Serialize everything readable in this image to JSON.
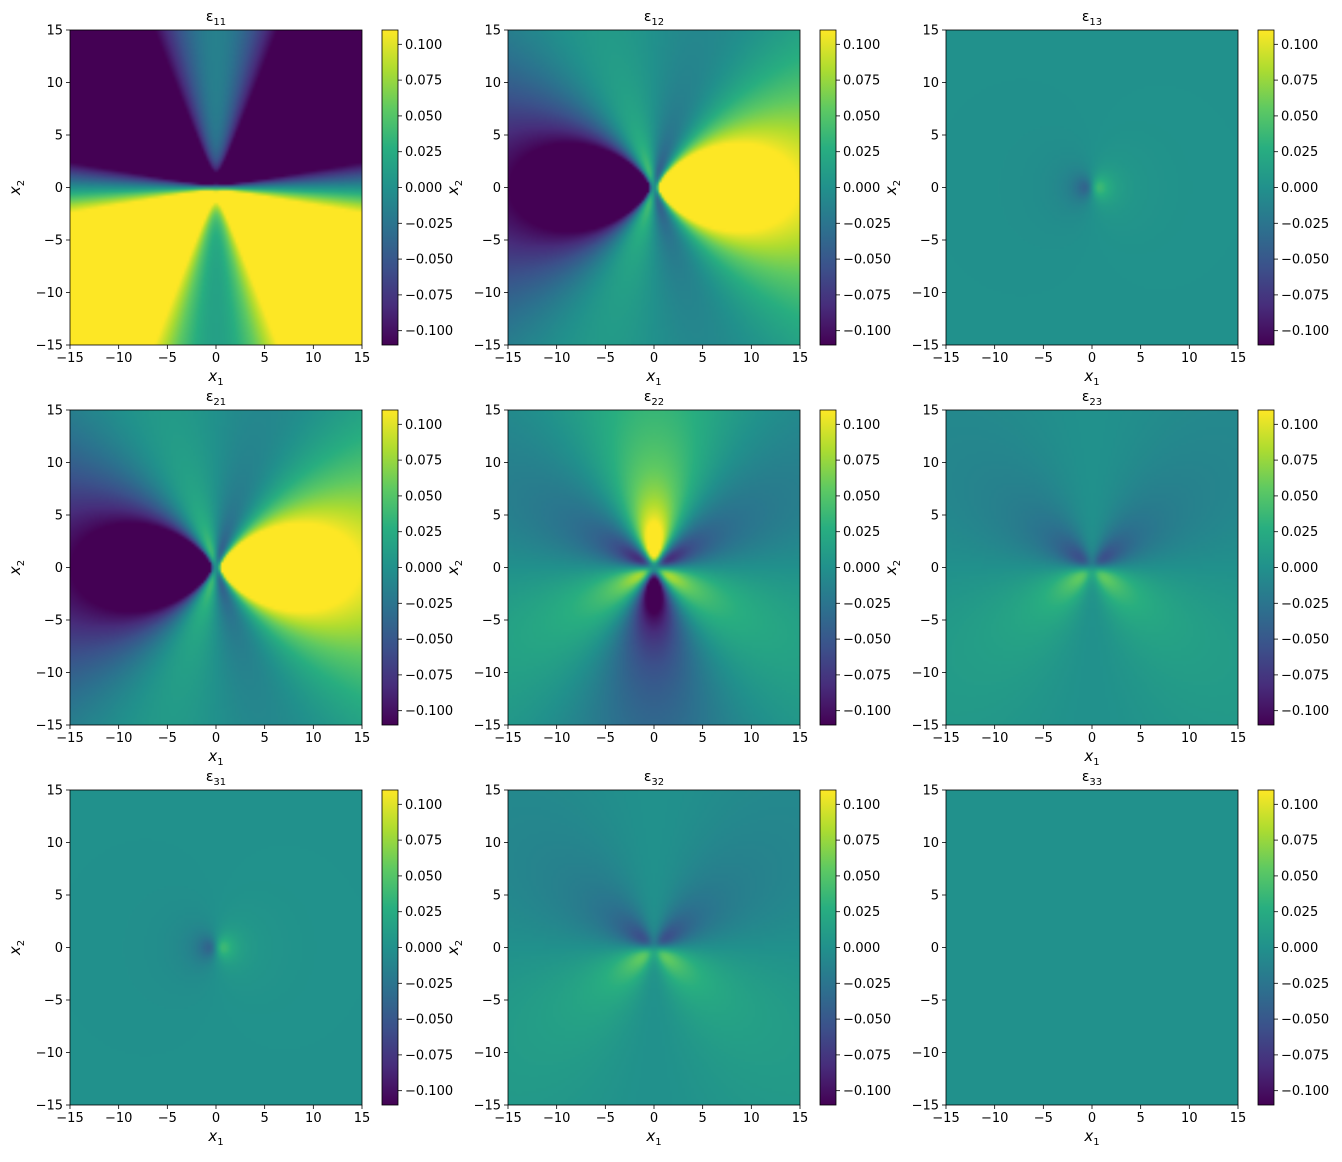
{
  "chart_data": [
    {
      "type": "heatmap",
      "title": "ε",
      "title_sub": "11",
      "xlabel": "x",
      "xlabel_sub": "1",
      "ylabel": "x",
      "ylabel_sub": "2",
      "xlim": [
        -15,
        15
      ],
      "ylim": [
        -15,
        15
      ],
      "xticks": [
        -15,
        -10,
        -5,
        0,
        5,
        10,
        15
      ],
      "yticks": [
        -15,
        -10,
        -5,
        0,
        5,
        10,
        15
      ],
      "colorbar": {
        "ticks": [
          0.1,
          0.075,
          0.05,
          0.025,
          0.0,
          -0.025,
          -0.05,
          -0.075,
          -0.1
        ],
        "tick_labels": [
          "0.100",
          "0.075",
          "0.050",
          "0.025",
          "0.000",
          "−0.025",
          "−0.050",
          "−0.075",
          "−0.100"
        ],
        "range": [
          -0.11,
          0.11
        ],
        "colormap": "viridis"
      },
      "pattern": "e11"
    },
    {
      "type": "heatmap",
      "title": "ε",
      "title_sub": "12",
      "xlabel": "x",
      "xlabel_sub": "1",
      "ylabel": "x",
      "ylabel_sub": "2",
      "xlim": [
        -15,
        15
      ],
      "ylim": [
        -15,
        15
      ],
      "xticks": [
        -15,
        -10,
        -5,
        0,
        5,
        10,
        15
      ],
      "yticks": [
        -15,
        -10,
        -5,
        0,
        5,
        10,
        15
      ],
      "colorbar": {
        "ticks": [
          0.1,
          0.075,
          0.05,
          0.025,
          0.0,
          -0.025,
          -0.05,
          -0.075,
          -0.1
        ],
        "tick_labels": [
          "0.100",
          "0.075",
          "0.050",
          "0.025",
          "0.000",
          "−0.025",
          "−0.050",
          "−0.075",
          "−0.100"
        ],
        "range": [
          -0.11,
          0.11
        ],
        "colormap": "viridis"
      },
      "pattern": "e12"
    },
    {
      "type": "heatmap",
      "title": "ε",
      "title_sub": "13",
      "xlabel": "x",
      "xlabel_sub": "1",
      "ylabel": "x",
      "ylabel_sub": "2",
      "xlim": [
        -15,
        15
      ],
      "ylim": [
        -15,
        15
      ],
      "xticks": [
        -15,
        -10,
        -5,
        0,
        5,
        10,
        15
      ],
      "yticks": [
        -15,
        -10,
        -5,
        0,
        5,
        10,
        15
      ],
      "colorbar": {
        "ticks": [
          0.1,
          0.075,
          0.05,
          0.025,
          0.0,
          -0.025,
          -0.05,
          -0.075,
          -0.1
        ],
        "tick_labels": [
          "0.100",
          "0.075",
          "0.050",
          "0.025",
          "0.000",
          "−0.025",
          "−0.050",
          "−0.075",
          "−0.100"
        ],
        "range": [
          -0.11,
          0.11
        ],
        "colormap": "viridis"
      },
      "pattern": "e13"
    },
    {
      "type": "heatmap",
      "title": "ε",
      "title_sub": "21",
      "xlabel": "x",
      "xlabel_sub": "1",
      "ylabel": "x",
      "ylabel_sub": "2",
      "xlim": [
        -15,
        15
      ],
      "ylim": [
        -15,
        15
      ],
      "xticks": [
        -15,
        -10,
        -5,
        0,
        5,
        10,
        15
      ],
      "yticks": [
        -15,
        -10,
        -5,
        0,
        5,
        10,
        15
      ],
      "colorbar": {
        "ticks": [
          0.1,
          0.075,
          0.05,
          0.025,
          0.0,
          -0.025,
          -0.05,
          -0.075,
          -0.1
        ],
        "tick_labels": [
          "0.100",
          "0.075",
          "0.050",
          "0.025",
          "0.000",
          "−0.025",
          "−0.050",
          "−0.075",
          "−0.100"
        ],
        "range": [
          -0.11,
          0.11
        ],
        "colormap": "viridis"
      },
      "pattern": "e12"
    },
    {
      "type": "heatmap",
      "title": "ε",
      "title_sub": "22",
      "xlabel": "",
      "xlabel_sub": "",
      "ylabel": "x",
      "ylabel_sub": "2",
      "xlim": [
        -15,
        15
      ],
      "ylim": [
        -15,
        15
      ],
      "xticks": [
        -15,
        -10,
        -5,
        0,
        5,
        10,
        15
      ],
      "yticks": [
        -15,
        -10,
        -5,
        0,
        5,
        10,
        15
      ],
      "colorbar": {
        "ticks": [
          0.1,
          0.075,
          0.05,
          0.025,
          0.0,
          -0.025,
          -0.05,
          -0.075,
          -0.1
        ],
        "tick_labels": [
          "0.100",
          "0.075",
          "0.050",
          "0.025",
          "0.000",
          "−0.025",
          "−0.050",
          "−0.075",
          "−0.100"
        ],
        "range": [
          -0.11,
          0.11
        ],
        "colormap": "viridis"
      },
      "pattern": "e22"
    },
    {
      "type": "heatmap",
      "title": "ε",
      "title_sub": "23",
      "xlabel": "x",
      "xlabel_sub": "1",
      "ylabel": "x",
      "ylabel_sub": "2",
      "xlim": [
        -15,
        15
      ],
      "ylim": [
        -15,
        15
      ],
      "xticks": [
        -15,
        -10,
        -5,
        0,
        5,
        10,
        15
      ],
      "yticks": [
        -15,
        -10,
        -5,
        0,
        5,
        10,
        15
      ],
      "colorbar": {
        "ticks": [
          0.1,
          0.075,
          0.05,
          0.025,
          0.0,
          -0.025,
          -0.05,
          -0.075,
          -0.1
        ],
        "tick_labels": [
          "0.100",
          "0.075",
          "0.050",
          "0.025",
          "0.000",
          "−0.025",
          "−0.050",
          "−0.075",
          "−0.100"
        ],
        "range": [
          -0.11,
          0.11
        ],
        "colormap": "viridis"
      },
      "pattern": "e23"
    },
    {
      "type": "heatmap",
      "title": "ε",
      "title_sub": "31",
      "xlabel": "x",
      "xlabel_sub": "1",
      "ylabel": "x",
      "ylabel_sub": "2",
      "xlim": [
        -15,
        15
      ],
      "ylim": [
        -15,
        15
      ],
      "xticks": [
        -15,
        -10,
        -5,
        0,
        5,
        10,
        15
      ],
      "yticks": [
        -15,
        -10,
        -5,
        0,
        5,
        10,
        15
      ],
      "colorbar": {
        "ticks": [
          0.1,
          0.075,
          0.05,
          0.025,
          0.0,
          -0.025,
          -0.05,
          -0.075,
          -0.1
        ],
        "tick_labels": [
          "0.100",
          "0.075",
          "0.050",
          "0.025",
          "0.000",
          "−0.025",
          "−0.050",
          "−0.075",
          "−0.100"
        ],
        "range": [
          -0.11,
          0.11
        ],
        "colormap": "viridis"
      },
      "pattern": "e13"
    },
    {
      "type": "heatmap",
      "title": "ε",
      "title_sub": "32",
      "xlabel": "x",
      "xlabel_sub": "1",
      "ylabel": "x",
      "ylabel_sub": "2",
      "xlim": [
        -15,
        15
      ],
      "ylim": [
        -15,
        15
      ],
      "xticks": [
        -15,
        -10,
        -5,
        0,
        5,
        10,
        15
      ],
      "yticks": [
        -15,
        -10,
        -5,
        0,
        5,
        10,
        15
      ],
      "colorbar": {
        "ticks": [
          0.1,
          0.075,
          0.05,
          0.025,
          0.0,
          -0.025,
          -0.05,
          -0.075,
          -0.1
        ],
        "tick_labels": [
          "0.100",
          "0.075",
          "0.050",
          "0.025",
          "0.000",
          "−0.025",
          "−0.050",
          "−0.075",
          "−0.100"
        ],
        "range": [
          -0.11,
          0.11
        ],
        "colormap": "viridis"
      },
      "pattern": "e23"
    },
    {
      "type": "heatmap",
      "title": "ε",
      "title_sub": "33",
      "xlabel": "x",
      "xlabel_sub": "1",
      "ylabel": "",
      "ylabel_sub": "",
      "xlim": [
        -15,
        15
      ],
      "ylim": [
        -15,
        15
      ],
      "xticks": [
        -15,
        -10,
        -5,
        0,
        5,
        10,
        15
      ],
      "yticks": [
        -15,
        -10,
        -5,
        0,
        5,
        10,
        15
      ],
      "colorbar": {
        "ticks": [
          0.1,
          0.075,
          0.05,
          0.025,
          0.0,
          -0.025,
          -0.05,
          -0.075,
          -0.1
        ],
        "tick_labels": [
          "0.100",
          "0.075",
          "0.050",
          "0.025",
          "0.000",
          "−0.025",
          "−0.050",
          "−0.075",
          "−0.100"
        ],
        "range": [
          -0.11,
          0.11
        ],
        "colormap": "viridis"
      },
      "pattern": "zero"
    }
  ]
}
